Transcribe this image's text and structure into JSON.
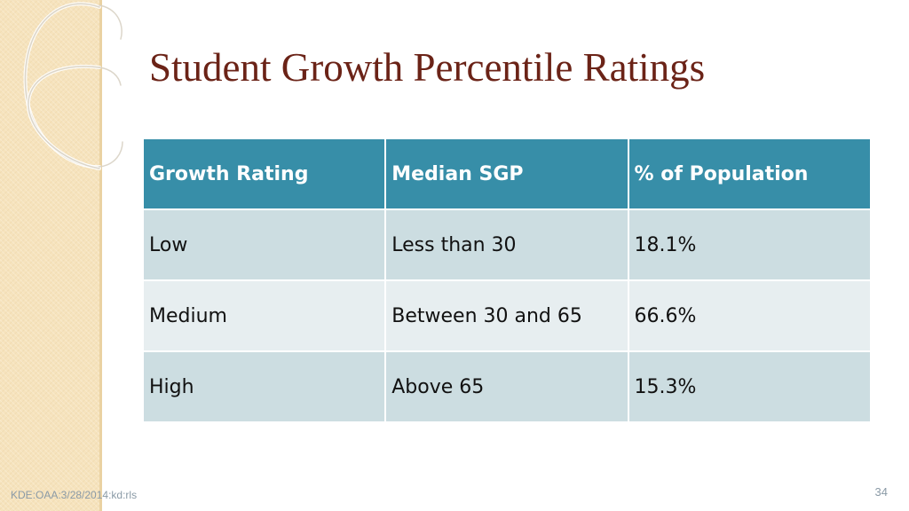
{
  "slide": {
    "title": "Student Growth Percentile Ratings",
    "footer_text": "KDE:OAA:3/28/2014:kd:rls",
    "slide_number": "34"
  },
  "table": {
    "headers": [
      "Growth Rating",
      "Median SGP",
      "% of Population"
    ],
    "rows": [
      [
        "Low",
        "Less than 30",
        "18.1%"
      ],
      [
        "Medium",
        "Between 30 and 65",
        "66.6%"
      ],
      [
        "High",
        "Above 65",
        "15.3%"
      ]
    ]
  },
  "colors": {
    "title": "#6b2317",
    "header_fill": "#378ea8",
    "row_fill_dark": "#ccdde1",
    "row_fill_light": "#e7eef0",
    "side_band": "#f6e3bd"
  }
}
